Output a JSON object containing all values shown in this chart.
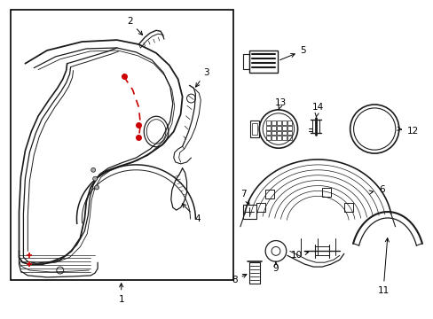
{
  "background_color": "#ffffff",
  "border_color": "#000000",
  "line_color": "#1a1a1a",
  "red_color": "#cc0000",
  "fig_width": 4.89,
  "fig_height": 3.6,
  "dpi": 100,
  "label_fontsize": 7.5
}
